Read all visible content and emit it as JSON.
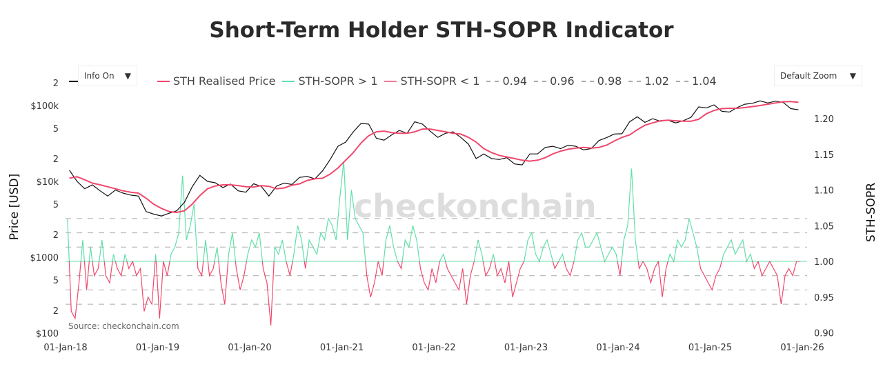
{
  "title": "Short-Term Holder STH-SOPR Indicator",
  "watermark": "checkonchain",
  "source": "Source: checkonchain.com",
  "controls": {
    "info_label": "Info On",
    "zoom_label": "Default Zoom",
    "caret": "▼"
  },
  "legend": [
    {
      "label": "STH Realised Price",
      "color": "#f0486c",
      "style": "solid"
    },
    {
      "label": "STH-SOPR > 1",
      "color": "#5fe0a8",
      "style": "solid"
    },
    {
      "label": "STH-SOPR < 1",
      "color": "#f47a94",
      "style": "solid"
    },
    {
      "label": "0.94",
      "color": "#aaaaaa",
      "style": "dash"
    },
    {
      "label": "0.96",
      "color": "#aaaaaa",
      "style": "dash"
    },
    {
      "label": "0.98",
      "color": "#aaaaaa",
      "style": "dash"
    },
    {
      "label": "1.02",
      "color": "#aaaaaa",
      "style": "dash"
    },
    {
      "label": "1.04",
      "color": "#aaaaaa",
      "style": "dash"
    }
  ],
  "chart_data": {
    "type": "line",
    "title": "Short-Term Holder STH-SOPR Indicator",
    "x_ticks": [
      "01-Jan-18",
      "01-Jan-19",
      "01-Jan-20",
      "01-Jan-21",
      "01-Jan-22",
      "01-Jan-23",
      "01-Jan-24",
      "01-Jan-25",
      "01-Jan-26"
    ],
    "y_left": {
      "label": "Price [USD]",
      "scale": "log",
      "range": [
        100,
        200000
      ],
      "ticks": [
        "$100",
        "2",
        "5",
        "$1000",
        "2",
        "5",
        "$10k",
        "2",
        "5",
        "$100k",
        "2"
      ]
    },
    "y_right": {
      "label": "STH-SOPR",
      "range": [
        0.9,
        1.232
      ],
      "ticks": [
        "0.90",
        "0.95",
        "1.00",
        "1.05",
        "1.10",
        "1.15",
        "1.20"
      ]
    },
    "reference_lines": [
      0.94,
      0.96,
      0.98,
      1.02,
      1.04,
      1.06
    ],
    "price_start": "2018-01",
    "price_frequency": "monthly",
    "price": [
      14000,
      10000,
      8000,
      9000,
      7500,
      6400,
      7700,
      7000,
      6600,
      6400,
      4000,
      3700,
      3500,
      3800,
      4100,
      5300,
      8500,
      12000,
      10000,
      9600,
      8300,
      9200,
      7500,
      7200,
      9300,
      8600,
      6400,
      8700,
      9500,
      9100,
      11300,
      11600,
      10800,
      13800,
      19600,
      29000,
      33000,
      45000,
      58000,
      57000,
      37000,
      35000,
      41000,
      47000,
      43000,
      61000,
      57000,
      46000,
      38000,
      43000,
      45000,
      38000,
      31000,
      20000,
      23000,
      20000,
      19400,
      20500,
      17000,
      16500,
      23000,
      23000,
      28000,
      29000,
      27000,
      30000,
      29000,
      26000,
      27000,
      34500,
      37700,
      42000,
      42500,
      61000,
      71000,
      60000,
      67000,
      62000,
      64000,
      59000,
      63000,
      70000,
      96000,
      93000,
      102000,
      84000,
      82000,
      94000,
      104000,
      107000,
      115000,
      108000,
      114000,
      110000,
      91000,
      88000
    ],
    "sth_realised_price": [
      11000,
      11500,
      10500,
      9500,
      9000,
      8500,
      8000,
      7500,
      7200,
      7000,
      6000,
      5000,
      4400,
      4000,
      3900,
      4100,
      5000,
      6500,
      8000,
      8700,
      9000,
      9000,
      8800,
      8500,
      8400,
      8800,
      8600,
      8000,
      8200,
      8900,
      9300,
      10300,
      10800,
      11000,
      12500,
      15000,
      19000,
      24000,
      32000,
      40000,
      45000,
      46000,
      44000,
      43000,
      43000,
      45000,
      49000,
      49000,
      47000,
      45000,
      43000,
      42000,
      38000,
      33000,
      27000,
      24000,
      22000,
      21000,
      20000,
      19000,
      18500,
      19000,
      20500,
      23000,
      25000,
      26500,
      27500,
      28000,
      27500,
      28000,
      30000,
      34000,
      38000,
      41000,
      48000,
      55000,
      59000,
      63000,
      64000,
      63000,
      62000,
      62000,
      66000,
      78000,
      86000,
      91000,
      92000,
      92000,
      94000,
      97000,
      100000,
      104000,
      108000,
      112000,
      113000,
      110000
    ],
    "sopr_frequency": "semi-monthly",
    "sth_sopr": [
      1.06,
      0.93,
      0.92,
      0.97,
      1.03,
      0.96,
      1.02,
      0.98,
      0.99,
      1.03,
      0.98,
      0.97,
      1.01,
      0.99,
      0.98,
      1.01,
      0.99,
      1.0,
      0.98,
      0.99,
      0.93,
      0.95,
      0.94,
      1.01,
      0.92,
      1.0,
      0.98,
      1.01,
      1.02,
      1.04,
      1.12,
      1.03,
      1.05,
      1.08,
      0.99,
      0.98,
      1.03,
      0.98,
      0.99,
      1.02,
      0.97,
      0.94,
      1.01,
      1.04,
      0.99,
      0.96,
      0.98,
      1.01,
      1.03,
      1.02,
      1.04,
      0.99,
      0.97,
      0.91,
      1.02,
      1.01,
      1.03,
      1.0,
      0.98,
      1.01,
      1.05,
      1.03,
      0.99,
      1.03,
      1.02,
      1.01,
      1.04,
      1.03,
      1.06,
      1.05,
      1.03,
      1.09,
      1.14,
      1.03,
      1.1,
      1.06,
      1.05,
      1.04,
      0.98,
      0.95,
      0.97,
      1.0,
      0.98,
      1.03,
      1.05,
      1.02,
      1.0,
      0.99,
      1.03,
      1.02,
      1.05,
      1.03,
      0.99,
      0.97,
      0.96,
      0.99,
      0.97,
      1.0,
      1.01,
      0.99,
      0.98,
      0.97,
      0.96,
      0.99,
      0.94,
      0.98,
      1.0,
      1.03,
      1.01,
      0.98,
      0.99,
      1.01,
      0.98,
      0.99,
      0.97,
      1.0,
      0.95,
      0.97,
      0.99,
      1.0,
      1.03,
      1.04,
      1.01,
      1.0,
      1.02,
      1.03,
      1.01,
      0.99,
      1.0,
      1.01,
      0.99,
      0.98,
      1.0,
      1.03,
      1.04,
      1.02,
      1.02,
      1.03,
      1.04,
      1.02,
      1.0,
      1.01,
      1.02,
      1.01,
      0.98,
      1.03,
      1.05,
      1.13,
      1.03,
      0.99,
      1.0,
      0.99,
      0.97,
      0.99,
      1.0,
      0.95,
      0.99,
      1.01,
      1.0,
      1.03,
      1.02,
      1.03,
      1.06,
      1.04,
      1.02,
      0.99,
      0.98,
      0.97,
      0.96,
      0.98,
      0.99,
      1.01,
      1.02,
      1.03,
      1.01,
      1.02,
      1.03,
      1.0,
      1.01,
      0.99,
      1.0,
      0.98,
      0.99,
      1.0,
      0.99,
      0.98,
      0.94,
      0.98,
      0.99,
      0.98,
      1.0,
      1.0
    ],
    "colors": {
      "price": "#111111",
      "realised": "#f0486c",
      "sopr_above": "#5fe0a8",
      "sopr_below": "#f0486c",
      "ref": "#aaaaaa"
    },
    "grid": false,
    "legend_position": "top"
  }
}
